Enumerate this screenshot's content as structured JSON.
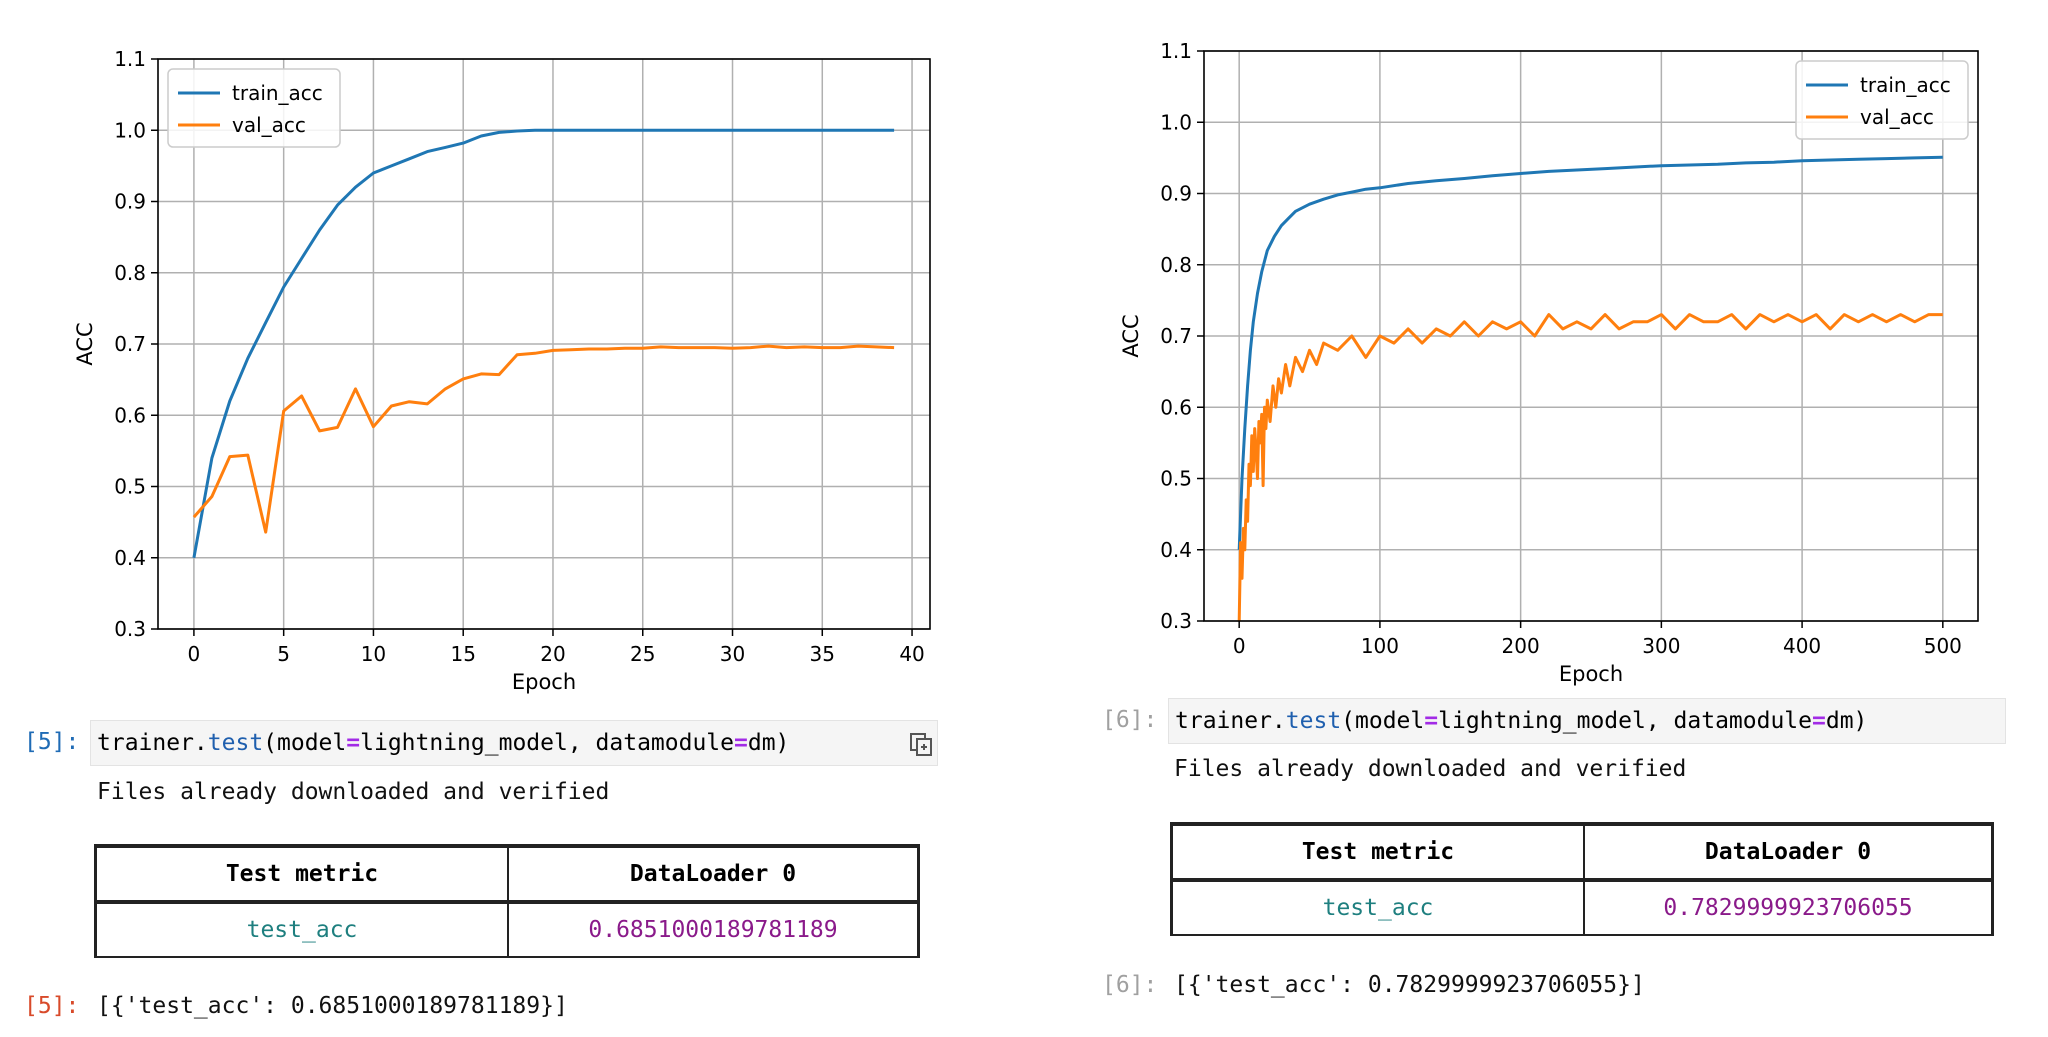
{
  "left_chart": {
    "chart_data": {
      "type": "line",
      "xlabel": "Epoch",
      "ylabel": "ACC",
      "xlim": [
        -2,
        41
      ],
      "ylim": [
        0.3,
        1.1
      ],
      "xticks": [
        0,
        5,
        10,
        15,
        20,
        25,
        30,
        35,
        40
      ],
      "yticks": [
        0.3,
        0.4,
        0.5,
        0.6,
        0.7,
        0.8,
        0.9,
        1.0,
        1.1
      ],
      "grid": true,
      "legend_position": "top-left",
      "series": [
        {
          "name": "train_acc",
          "color": "#1f77b4",
          "x": [
            0,
            1,
            2,
            3,
            4,
            5,
            6,
            7,
            8,
            9,
            10,
            11,
            12,
            13,
            14,
            15,
            16,
            17,
            18,
            19,
            20,
            21,
            22,
            23,
            24,
            25,
            26,
            27,
            28,
            29,
            30,
            31,
            32,
            33,
            34,
            35,
            36,
            37,
            38,
            39
          ],
          "y": [
            0.4,
            0.54,
            0.62,
            0.68,
            0.73,
            0.78,
            0.82,
            0.86,
            0.895,
            0.92,
            0.94,
            0.95,
            0.96,
            0.97,
            0.976,
            0.982,
            0.992,
            0.997,
            0.999,
            1.0,
            1.0,
            1.0,
            1.0,
            1.0,
            1.0,
            1.0,
            1.0,
            1.0,
            1.0,
            1.0,
            1.0,
            1.0,
            1.0,
            1.0,
            1.0,
            1.0,
            1.0,
            1.0,
            1.0,
            1.0
          ]
        },
        {
          "name": "val_acc",
          "color": "#ff7f0e",
          "x": [
            0,
            1,
            2,
            3,
            4,
            5,
            6,
            7,
            8,
            9,
            10,
            11,
            12,
            13,
            14,
            15,
            16,
            17,
            18,
            19,
            20,
            21,
            22,
            23,
            24,
            25,
            26,
            27,
            28,
            29,
            30,
            31,
            32,
            33,
            34,
            35,
            36,
            37,
            38,
            39
          ],
          "y": [
            0.457,
            0.486,
            0.542,
            0.544,
            0.436,
            0.606,
            0.627,
            0.578,
            0.583,
            0.637,
            0.584,
            0.613,
            0.619,
            0.616,
            0.637,
            0.651,
            0.658,
            0.657,
            0.685,
            0.687,
            0.691,
            0.692,
            0.693,
            0.693,
            0.694,
            0.694,
            0.696,
            0.695,
            0.695,
            0.695,
            0.694,
            0.695,
            0.697,
            0.695,
            0.696,
            0.695,
            0.695,
            0.697,
            0.696,
            0.695
          ]
        }
      ]
    }
  },
  "right_chart": {
    "chart_data": {
      "type": "line",
      "xlabel": "Epoch",
      "ylabel": "ACC",
      "xlim": [
        -25,
        525
      ],
      "ylim": [
        0.3,
        1.1
      ],
      "xticks": [
        0,
        100,
        200,
        300,
        400,
        500
      ],
      "yticks": [
        0.3,
        0.4,
        0.5,
        0.6,
        0.7,
        0.8,
        0.9,
        1.0,
        1.1
      ],
      "grid": true,
      "legend_position": "top-right",
      "series": [
        {
          "name": "train_acc",
          "color": "#1f77b4",
          "x": [
            0,
            2,
            4,
            6,
            8,
            10,
            13,
            16,
            20,
            25,
            30,
            35,
            40,
            50,
            60,
            70,
            80,
            90,
            100,
            120,
            140,
            160,
            180,
            200,
            220,
            240,
            260,
            280,
            300,
            320,
            340,
            360,
            380,
            400,
            420,
            440,
            460,
            480,
            500
          ],
          "y": [
            0.4,
            0.5,
            0.57,
            0.63,
            0.68,
            0.72,
            0.76,
            0.79,
            0.82,
            0.84,
            0.855,
            0.865,
            0.875,
            0.885,
            0.892,
            0.898,
            0.902,
            0.906,
            0.908,
            0.914,
            0.918,
            0.921,
            0.925,
            0.928,
            0.931,
            0.933,
            0.935,
            0.937,
            0.939,
            0.94,
            0.941,
            0.943,
            0.944,
            0.946,
            0.947,
            0.948,
            0.949,
            0.95,
            0.951
          ]
        },
        {
          "name": "val_acc",
          "color": "#ff7f0e",
          "x": [
            0,
            1,
            2,
            3,
            4,
            5,
            6,
            7,
            8,
            9,
            10,
            11,
            12,
            13,
            14,
            15,
            16,
            17,
            18,
            19,
            20,
            22,
            24,
            26,
            28,
            30,
            33,
            36,
            40,
            45,
            50,
            55,
            60,
            70,
            80,
            90,
            100,
            110,
            120,
            130,
            140,
            150,
            160,
            170,
            180,
            190,
            200,
            210,
            220,
            230,
            240,
            250,
            260,
            270,
            280,
            290,
            300,
            310,
            320,
            330,
            340,
            350,
            360,
            370,
            380,
            390,
            400,
            410,
            420,
            430,
            440,
            450,
            460,
            470,
            480,
            490,
            500
          ],
          "y": [
            0.3,
            0.41,
            0.36,
            0.43,
            0.4,
            0.47,
            0.44,
            0.52,
            0.49,
            0.56,
            0.51,
            0.57,
            0.54,
            0.5,
            0.58,
            0.55,
            0.59,
            0.49,
            0.6,
            0.57,
            0.61,
            0.58,
            0.63,
            0.6,
            0.64,
            0.62,
            0.66,
            0.63,
            0.67,
            0.65,
            0.68,
            0.66,
            0.69,
            0.68,
            0.7,
            0.67,
            0.7,
            0.69,
            0.71,
            0.69,
            0.71,
            0.7,
            0.72,
            0.7,
            0.72,
            0.71,
            0.72,
            0.7,
            0.73,
            0.71,
            0.72,
            0.71,
            0.73,
            0.71,
            0.72,
            0.72,
            0.73,
            0.71,
            0.73,
            0.72,
            0.72,
            0.73,
            0.71,
            0.73,
            0.72,
            0.73,
            0.72,
            0.73,
            0.71,
            0.73,
            0.72,
            0.73,
            0.72,
            0.73,
            0.72,
            0.73,
            0.73
          ]
        }
      ]
    }
  },
  "left_cell": {
    "in_prompt": "[5]:",
    "code": {
      "obj": "trainer.",
      "method": "test",
      "p1": "(model",
      "eq1": "=",
      "p2": "lightning_model, datamodule",
      "eq2": "=",
      "p3": "dm)"
    },
    "stream_text": "Files already downloaded and verified",
    "table": {
      "col1": "Test metric",
      "col2": "DataLoader 0",
      "metric": "test_acc",
      "value": "0.6851000189781189"
    },
    "out_prompt": "[5]:",
    "out_text": "[{'test_acc': 0.6851000189781189}]"
  },
  "right_cell": {
    "in_prompt": "[6]:",
    "code": {
      "obj": "trainer.",
      "method": "test",
      "p1": "(model",
      "eq1": "=",
      "p2": "lightning_model, datamodule",
      "eq2": "=",
      "p3": "dm)"
    },
    "stream_text": "Files already downloaded and verified",
    "table": {
      "col1": "Test metric",
      "col2": "DataLoader 0",
      "metric": "test_acc",
      "value": "0.7829999923706055"
    },
    "out_prompt": "[6]:",
    "out_text": "[{'test_acc': 0.7829999923706055}]"
  }
}
